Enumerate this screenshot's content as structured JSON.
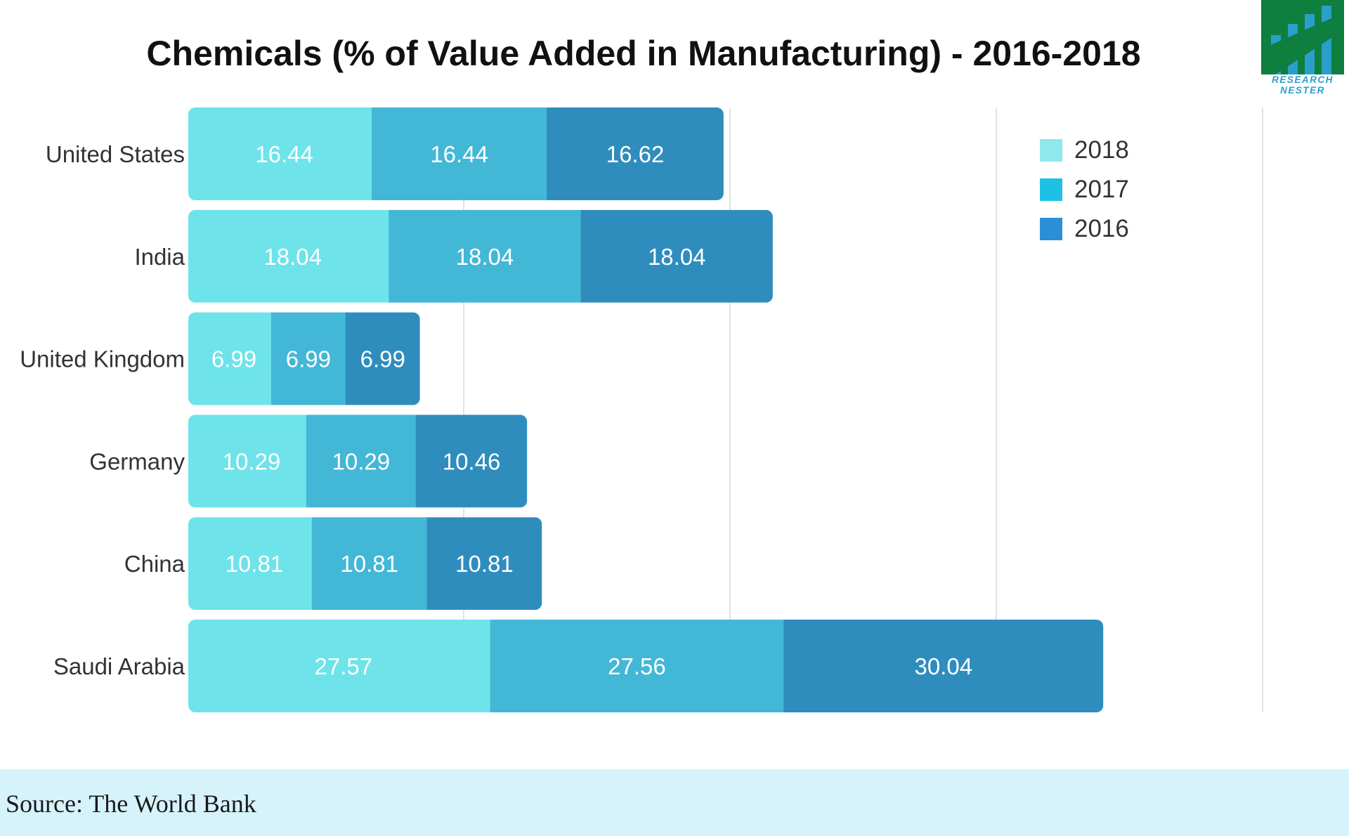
{
  "chart_data": {
    "type": "bar",
    "orientation": "horizontal",
    "stacked": true,
    "title": "Chemicals (% of Value Added in Manufacturing) - 2016-2018",
    "categories": [
      "United States",
      "India",
      "United Kingdom",
      "Germany",
      "China",
      "Saudi Arabia"
    ],
    "series": [
      {
        "name": "2018",
        "color": "#6ee3ea",
        "values": [
          16.44,
          18.04,
          6.99,
          10.29,
          10.81,
          27.57
        ]
      },
      {
        "name": "2017",
        "color": "#43b7d6",
        "values": [
          16.44,
          18.04,
          6.99,
          10.29,
          10.81,
          27.56
        ]
      },
      {
        "name": "2016",
        "color": "#2f8dbe",
        "values": [
          16.62,
          18.04,
          6.99,
          10.46,
          10.81,
          30.04
        ]
      }
    ],
    "legend_entries": [
      {
        "label": "2018",
        "color": "#8ee8ec"
      },
      {
        "label": "2017",
        "color": "#1fc0e6"
      },
      {
        "label": "2016",
        "color": "#2a8fd6"
      }
    ],
    "xlim": [
      0,
      100
    ],
    "grid": true,
    "legend_position": "right",
    "xlabel": "",
    "ylabel": ""
  },
  "footer": {
    "source": "Source: The World Bank"
  },
  "logo": {
    "line1": "RESEARCH",
    "line2": "NESTER"
  },
  "colors": {
    "logo_green": "#0e7f3e",
    "logo_blue": "#2a9fc9",
    "footer_bg": "#d6f3fb",
    "grid": "#d9d9d9"
  }
}
